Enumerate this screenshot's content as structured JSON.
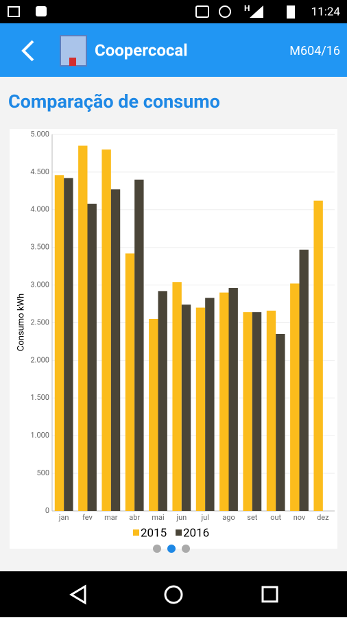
{
  "status_bar": {
    "network": "H",
    "time": "11:24"
  },
  "app_bar": {
    "title": "Coopercocal",
    "code": "M604/16"
  },
  "page_title": "Comparação de consumo",
  "chart_data": {
    "type": "bar",
    "ylabel": "Consumo kWh",
    "categories": [
      "jan",
      "fev",
      "mar",
      "abr",
      "mai",
      "jun",
      "jul",
      "ago",
      "set",
      "out",
      "nov",
      "dez"
    ],
    "series": [
      {
        "name": "2015",
        "color": "#fbbc1c",
        "values": [
          4460,
          4850,
          4800,
          3420,
          2550,
          3040,
          2700,
          2900,
          2640,
          2660,
          3020,
          4120
        ]
      },
      {
        "name": "2016",
        "color": "#4a4538",
        "values": [
          4420,
          4080,
          4270,
          4400,
          2920,
          2740,
          2830,
          2960,
          2640,
          2350,
          3470,
          null
        ]
      }
    ],
    "ylim": [
      0,
      5000
    ],
    "yticks": [
      0,
      500,
      {
        "value": 1000,
        "label": "1.000"
      },
      {
        "value": 1500,
        "label": "1.500"
      },
      {
        "value": 2000,
        "label": "2.000"
      },
      {
        "value": 2500,
        "label": "2.500"
      },
      {
        "value": 3000,
        "label": "3.000"
      },
      {
        "value": 3500,
        "label": "3.500"
      },
      {
        "value": 4000,
        "label": "4.000"
      },
      {
        "value": 4500,
        "label": "4.500"
      },
      {
        "value": 5000,
        "label": "5.000"
      }
    ],
    "grid": true
  }
}
